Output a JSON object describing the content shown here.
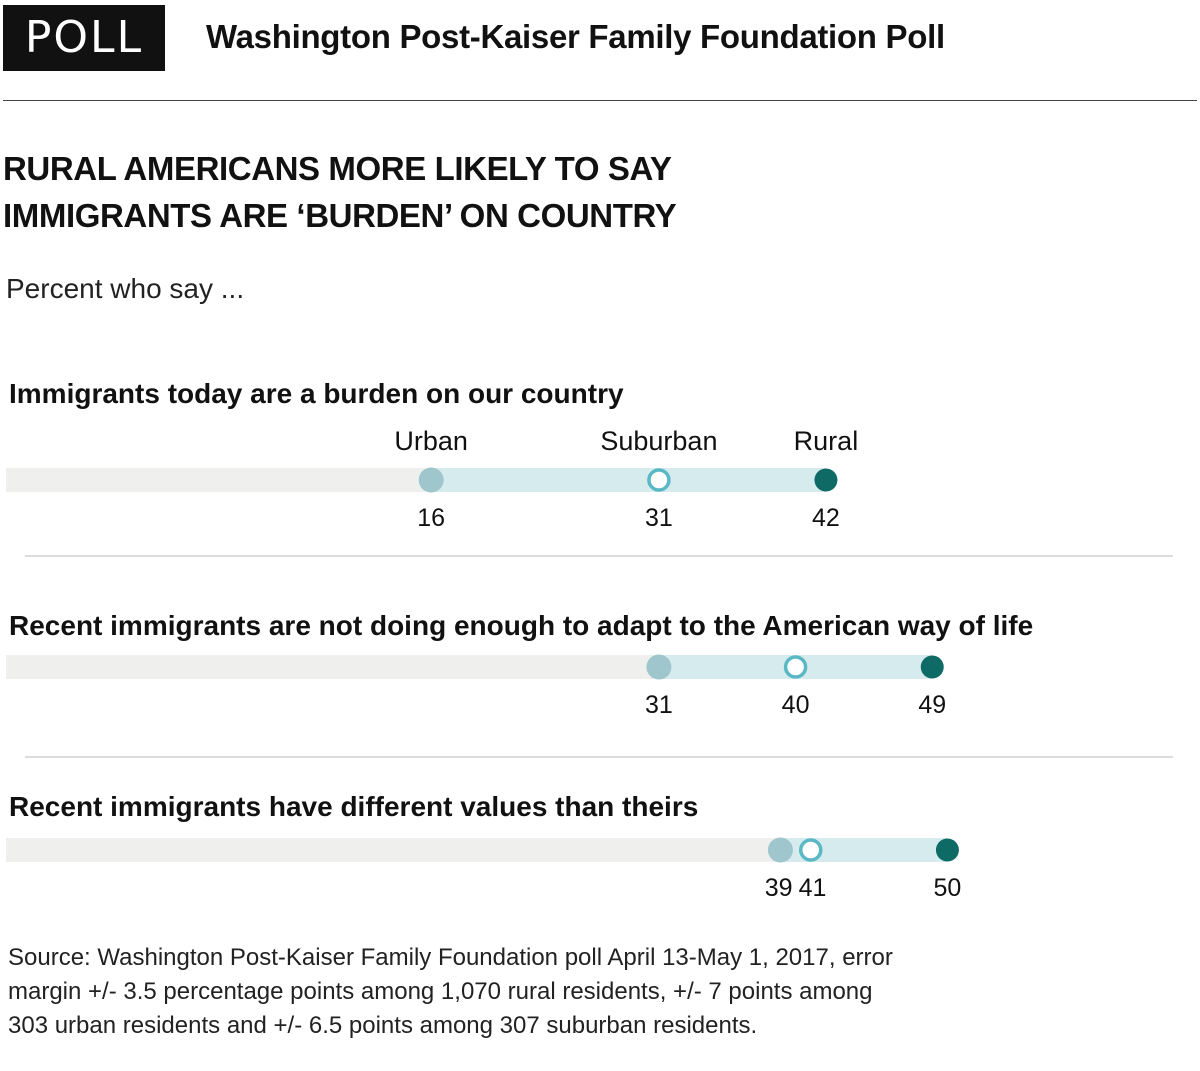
{
  "header": {
    "badge": "POLL",
    "title": "Washington Post-Kaiser Family Foundation Poll"
  },
  "headline_lines": [
    "RURAL AMERICANS MORE LIKELY TO SAY",
    "IMMIGRANTS ARE ‘BURDEN’ ON COUNTRY"
  ],
  "subtitle": "Percent who say ...",
  "source_lines": [
    "Source: Washington Post-Kaiser Family Foundation poll April 13-May 1, 2017, error",
    "margin +/- 3.5 percentage points among 1,070 rural residents, +/- 7 points among",
    "303 urban residents and +/- 6.5 points among 307 suburban residents."
  ],
  "colors": {
    "track": "#efefee",
    "range": "#d5ebee",
    "urban": "#9fc6cc",
    "suburban_stroke": "#5ab7c4",
    "rural": "#0e6a64",
    "divider": "#c8c8c8"
  },
  "chart_data": {
    "type": "dot-range",
    "series": [
      {
        "name": "Urban",
        "marker": "light-teal-filled"
      },
      {
        "name": "Suburban",
        "marker": "hollow-teal"
      },
      {
        "name": "Rural",
        "marker": "dark-teal-filled"
      }
    ],
    "xlim": [
      -12,
      64
    ],
    "rows": [
      {
        "label": "Immigrants today are a burden on our country",
        "values": [
          16,
          31,
          42
        ],
        "show_series_labels": true
      },
      {
        "label": "Recent immigrants are not doing enough to adapt to the American way of life",
        "values": [
          31,
          40,
          49
        ],
        "show_series_labels": false
      },
      {
        "label": "Recent immigrants have different values than theirs",
        "values": [
          39,
          41,
          50
        ],
        "show_series_labels": false
      }
    ]
  }
}
